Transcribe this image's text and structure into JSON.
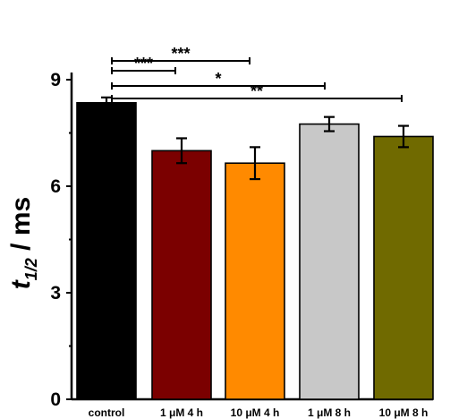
{
  "chart_data": {
    "type": "bar",
    "categories": [
      "control",
      "1 μM 4 h",
      "10 μM 4 h",
      "1 μM 8 h",
      "10 μM 8 h"
    ],
    "values": [
      8.35,
      7.0,
      6.65,
      7.75,
      7.4
    ],
    "errors": [
      0.15,
      0.35,
      0.45,
      0.2,
      0.3
    ],
    "colors": [
      "#000000",
      "#7b0000",
      "#ff8a00",
      "#c8c8c8",
      "#706a00"
    ],
    "ylabel": {
      "main": "t",
      "subscript": "1/2",
      "rest": " / ms"
    },
    "ylim": [
      0,
      9
    ],
    "yticks": [
      0,
      3,
      6,
      9
    ],
    "significance": [
      {
        "from": 0,
        "to": 2,
        "label": "***"
      },
      {
        "from": 0,
        "to": 1,
        "label": "***"
      },
      {
        "from": 0,
        "to": 3,
        "label": "*"
      },
      {
        "from": 0,
        "to": 4,
        "label": "**"
      }
    ],
    "grid": false,
    "legend": "none"
  }
}
